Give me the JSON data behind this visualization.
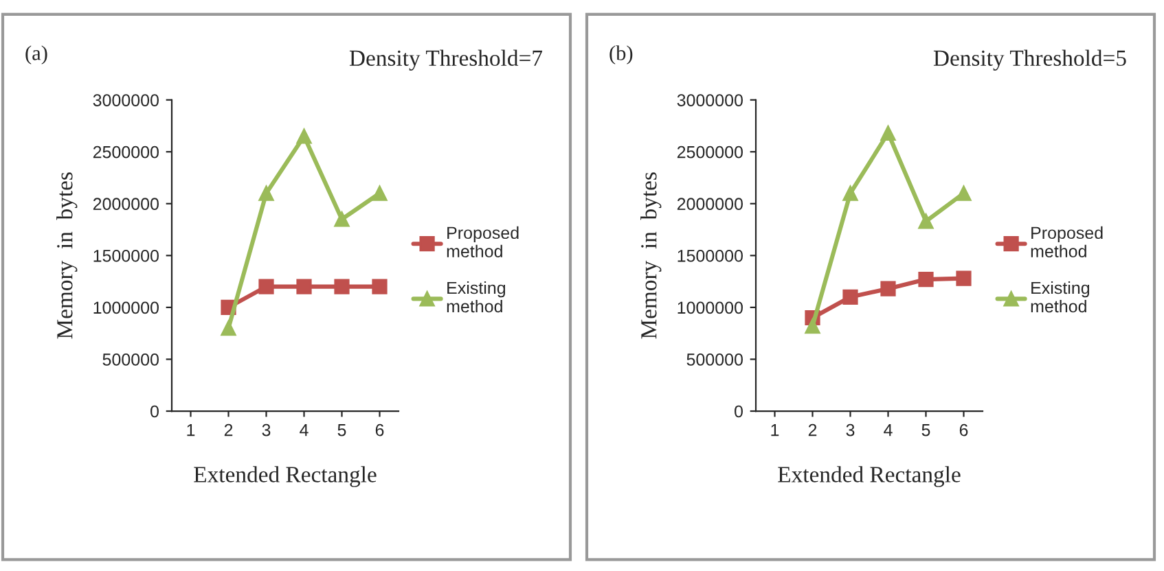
{
  "chart_data": [
    {
      "type": "line",
      "title": "Density Threshold=7",
      "annotations": [
        "(a)"
      ],
      "xlabel": "Extended Rectangle",
      "ylabel": "Memory  in  bytes",
      "categories": [
        "1",
        "2",
        "3",
        "4",
        "5",
        "6"
      ],
      "ylim": [
        0,
        3000000
      ],
      "yticks": [
        0,
        500000,
        1000000,
        1500000,
        2000000,
        2500000,
        3000000
      ],
      "legend": "right",
      "grid": false,
      "series": [
        {
          "name": "Proposed method",
          "color": "#c0504d",
          "marker": "square",
          "values": [
            null,
            1000000,
            1200000,
            1200000,
            1200000,
            1200000
          ]
        },
        {
          "name": "Existing method",
          "color": "#9bbb59",
          "marker": "triangle",
          "values": [
            null,
            800000,
            2100000,
            2650000,
            1850000,
            2100000
          ]
        }
      ]
    },
    {
      "type": "line",
      "title": "Density Threshold=5",
      "annotations": [
        "(b)"
      ],
      "xlabel": "Extended Rectangle",
      "ylabel": "Memory  in  bytes",
      "categories": [
        "1",
        "2",
        "3",
        "4",
        "5",
        "6"
      ],
      "ylim": [
        0,
        3000000
      ],
      "yticks": [
        0,
        500000,
        1000000,
        1500000,
        2000000,
        2500000,
        3000000
      ],
      "legend": "right",
      "grid": false,
      "series": [
        {
          "name": "Proposed method",
          "color": "#c0504d",
          "marker": "square",
          "values": [
            null,
            900000,
            1100000,
            1180000,
            1270000,
            1280000
          ]
        },
        {
          "name": "Existing method",
          "color": "#9bbb59",
          "marker": "triangle",
          "values": [
            null,
            820000,
            2100000,
            2680000,
            1830000,
            2100000
          ]
        }
      ]
    }
  ]
}
